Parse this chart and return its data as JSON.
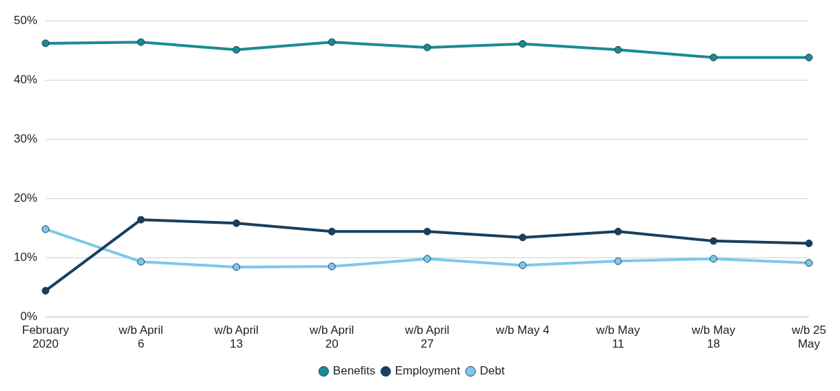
{
  "chart_data": {
    "type": "line",
    "categories": [
      "February 2020",
      "w/b April 6",
      "w/b April 13",
      "w/b April 20",
      "w/b April 27",
      "w/b May 4",
      "w/b May 11",
      "w/b May 18",
      "w/b 25 May"
    ],
    "series": [
      {
        "name": "Benefits",
        "color": "#1b8a94",
        "values": [
          46.2,
          46.4,
          45.1,
          46.4,
          45.5,
          46.1,
          45.1,
          43.8,
          43.8
        ]
      },
      {
        "name": "Employment",
        "color": "#173f5f",
        "values": [
          4.4,
          16.4,
          15.8,
          14.4,
          14.4,
          13.4,
          14.4,
          12.8,
          12.4
        ]
      },
      {
        "name": "Debt",
        "color": "#7cc8ea",
        "values": [
          14.8,
          9.3,
          8.4,
          8.5,
          9.8,
          8.7,
          9.4,
          9.8,
          9.1
        ]
      }
    ],
    "ylim": [
      0,
      50
    ],
    "yticks": [
      {
        "value": 0,
        "label": "0%"
      },
      {
        "value": 10,
        "label": "10%"
      },
      {
        "value": 20,
        "label": "20%"
      },
      {
        "value": 30,
        "label": "30%"
      },
      {
        "value": 40,
        "label": "40%"
      },
      {
        "value": 50,
        "label": "50%"
      }
    ],
    "grid": "y",
    "legend": "bottom",
    "marker": "circle",
    "line_style": "solid"
  }
}
